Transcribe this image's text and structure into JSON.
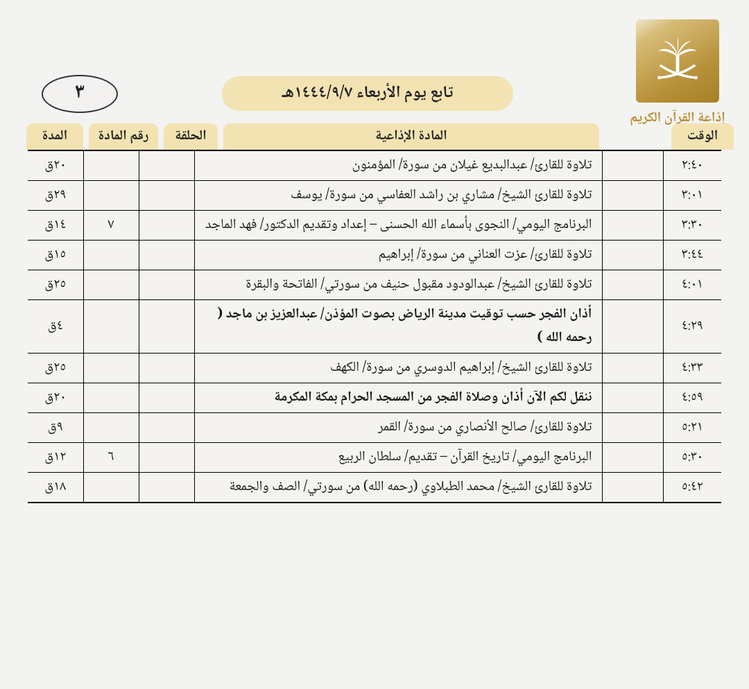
{
  "logo": {
    "caption": "إذاعة القرآن الكريم",
    "bg_gradient": [
      "#efe6cc",
      "#d7bd77",
      "#b8923b",
      "#a58024"
    ],
    "caption_color": "#b88d33"
  },
  "title": "تابع يوم الأربعاء  ١٤٤٤/٩/٧هـ",
  "page_number": "٣",
  "colors": {
    "tab_bg": "#f3e3b3",
    "page_bg": "#f3f3f1",
    "border": "#000000"
  },
  "headers": {
    "time": "الوقت",
    "content": "المادة الإذاعية",
    "episode": "الحلقة",
    "material_number": "رقم المادة",
    "duration": "المدة"
  },
  "rows": [
    {
      "time": "٢:٤٠",
      "content": "تلاوة للقارئ/ عبدالبديع غيلان من سورة/ المؤمنون",
      "bold": false,
      "episode": "",
      "number": "",
      "duration": "٢٠ق"
    },
    {
      "time": "٣:٠١",
      "content": "تلاوة للقارئ الشيخ/ مشاري بن راشد العفاسي من سورة/ يوسف",
      "bold": false,
      "episode": "",
      "number": "",
      "duration": "٢٩ق"
    },
    {
      "time": "٣:٣٠",
      "content": "البرنامج اليومي/ النجوى بأسماء الله الحسنى – إعداد وتقديم الدكتور/ فهد الماجد",
      "bold": false,
      "episode": "",
      "number": "٧",
      "duration": "١٤ق"
    },
    {
      "time": "٣:٤٤",
      "content": "تلاوة للقارئ/ عزت العناني من سورة/ إبراهيم",
      "bold": false,
      "episode": "",
      "number": "",
      "duration": "١٥ق"
    },
    {
      "time": "٤:٠١",
      "content": "تلاوة للقارئ الشيخ/ عبدالودود مقبول حنيف من سورتي/ الفاتحة والبقرة",
      "bold": false,
      "episode": "",
      "number": "",
      "duration": "٢٥ق"
    },
    {
      "time": "٤:٢٩",
      "content": "أذان الفجر حسب توقيت مدينة الرياض بصوت المؤذن/ عبدالعزيز بن ماجد ( رحمه الله )",
      "bold": true,
      "episode": "",
      "number": "",
      "duration": "٤ق"
    },
    {
      "time": "٤:٣٣",
      "content": "تلاوة للقارئ الشيخ/ إبراهيم الدوسري من سورة/ الكهف",
      "bold": false,
      "episode": "",
      "number": "",
      "duration": "٢٥ق"
    },
    {
      "time": "٤:٥٩",
      "content": "ننقل لكم الآن أذان وصلاة الفجر من المسجد الحرام بمكة المكرمة",
      "bold": true,
      "episode": "",
      "number": "",
      "duration": "٢٠ق"
    },
    {
      "time": "٥:٢١",
      "content": "تلاوة للقارئ/ صالح الأنصاري من سورة/ القمر",
      "bold": false,
      "episode": "",
      "number": "",
      "duration": "٩ق"
    },
    {
      "time": "٥:٣٠",
      "content": "البرنامج اليومي/ تاريخ القرآن – تقديم/ سلطان الربيع",
      "bold": false,
      "episode": "",
      "number": "٦",
      "duration": "١٢ق"
    },
    {
      "time": "٥:٤٢",
      "content": "تلاوة للقارئ الشيخ/ محمد الطبلاوي (رحمه الله) من سورتي/ الصف والجمعة",
      "bold": false,
      "episode": "",
      "number": "",
      "duration": "١٨ق"
    }
  ]
}
